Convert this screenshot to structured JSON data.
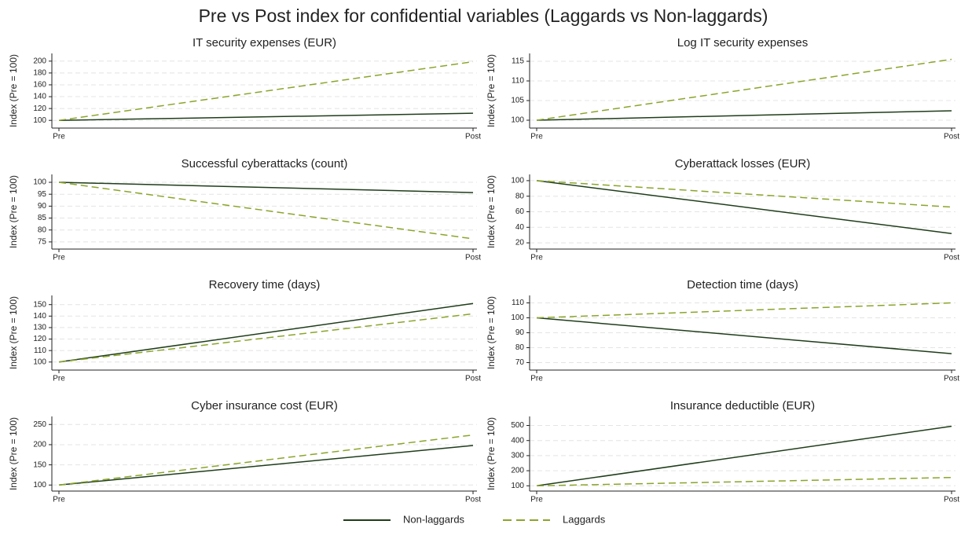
{
  "title": "Pre vs Post index for confidential variables (Laggards vs Non-laggards)",
  "chart_data": [
    {
      "type": "line",
      "title": "IT security expenses (EUR)",
      "ylabel": "Index (Pre = 100)",
      "categories": [
        "Pre",
        "Post"
      ],
      "series": [
        {
          "name": "Non-laggards",
          "color": "#1f3d1a",
          "dash": false,
          "values": [
            100,
            112
          ]
        },
        {
          "name": "Laggards",
          "color": "#8aa52b",
          "dash": true,
          "values": [
            100,
            199
          ]
        }
      ],
      "ylim": [
        87,
        213
      ],
      "yticks": [
        100,
        120,
        140,
        160,
        180,
        200
      ],
      "grid": true
    },
    {
      "type": "line",
      "title": "Log IT security expenses",
      "ylabel": "Index (Pre = 100)",
      "categories": [
        "Pre",
        "Post"
      ],
      "series": [
        {
          "name": "Non-laggards",
          "color": "#1f3d1a",
          "dash": false,
          "values": [
            100,
            102.4
          ]
        },
        {
          "name": "Laggards",
          "color": "#8aa52b",
          "dash": true,
          "values": [
            100,
            115.5
          ]
        }
      ],
      "ylim": [
        98,
        117
      ],
      "yticks": [
        100,
        105,
        110,
        115
      ],
      "grid": true
    },
    {
      "type": "line",
      "title": "Successful cyberattacks (count)",
      "ylabel": "Index (Pre = 100)",
      "categories": [
        "Pre",
        "Post"
      ],
      "series": [
        {
          "name": "Non-laggards",
          "color": "#1f3d1a",
          "dash": false,
          "values": [
            100,
            95.7
          ]
        },
        {
          "name": "Laggards",
          "color": "#8aa52b",
          "dash": true,
          "values": [
            100,
            76.3
          ]
        }
      ],
      "ylim": [
        72,
        103.3
      ],
      "yticks": [
        75,
        80,
        85,
        90,
        95,
        100
      ],
      "grid": true
    },
    {
      "type": "line",
      "title": "Cyberattack losses (EUR)",
      "ylabel": "Index (Pre = 100)",
      "categories": [
        "Pre",
        "Post"
      ],
      "series": [
        {
          "name": "Non-laggards",
          "color": "#1f3d1a",
          "dash": false,
          "values": [
            100,
            32
          ]
        },
        {
          "name": "Laggards",
          "color": "#8aa52b",
          "dash": true,
          "values": [
            100,
            66
          ]
        }
      ],
      "ylim": [
        12,
        108
      ],
      "yticks": [
        20,
        40,
        60,
        80,
        100
      ],
      "grid": true
    },
    {
      "type": "line",
      "title": "Recovery time (days)",
      "ylabel": "Index (Pre = 100)",
      "categories": [
        "Pre",
        "Post"
      ],
      "series": [
        {
          "name": "Non-laggards",
          "color": "#1f3d1a",
          "dash": false,
          "values": [
            100,
            151
          ]
        },
        {
          "name": "Laggards",
          "color": "#8aa52b",
          "dash": true,
          "values": [
            100,
            142
          ]
        }
      ],
      "ylim": [
        93,
        158
      ],
      "yticks": [
        100,
        110,
        120,
        130,
        140,
        150
      ],
      "grid": true
    },
    {
      "type": "line",
      "title": "Detection time (days)",
      "ylabel": "Index (Pre = 100)",
      "categories": [
        "Pre",
        "Post"
      ],
      "series": [
        {
          "name": "Non-laggards",
          "color": "#1f3d1a",
          "dash": false,
          "values": [
            100,
            76
          ]
        },
        {
          "name": "Laggards",
          "color": "#8aa52b",
          "dash": true,
          "values": [
            100,
            110
          ]
        }
      ],
      "ylim": [
        65,
        115
      ],
      "yticks": [
        70,
        80,
        90,
        100,
        110
      ],
      "grid": true
    },
    {
      "type": "line",
      "title": "Cyber insurance cost (EUR)",
      "ylabel": "Index (Pre = 100)",
      "categories": [
        "Pre",
        "Post"
      ],
      "series": [
        {
          "name": "Non-laggards",
          "color": "#1f3d1a",
          "dash": false,
          "values": [
            100,
            198
          ]
        },
        {
          "name": "Laggards",
          "color": "#8aa52b",
          "dash": true,
          "values": [
            100,
            224
          ]
        }
      ],
      "ylim": [
        85,
        270
      ],
      "yticks": [
        100,
        150,
        200,
        250
      ],
      "grid": true
    },
    {
      "type": "line",
      "title": "Insurance deductible (EUR)",
      "ylabel": "Index (Pre = 100)",
      "categories": [
        "Pre",
        "Post"
      ],
      "series": [
        {
          "name": "Non-laggards",
          "color": "#1f3d1a",
          "dash": false,
          "values": [
            100,
            495
          ]
        },
        {
          "name": "Laggards",
          "color": "#8aa52b",
          "dash": true,
          "values": [
            100,
            155
          ]
        }
      ],
      "ylim": [
        65,
        560
      ],
      "yticks": [
        100,
        200,
        300,
        400,
        500
      ],
      "grid": true
    }
  ]
}
